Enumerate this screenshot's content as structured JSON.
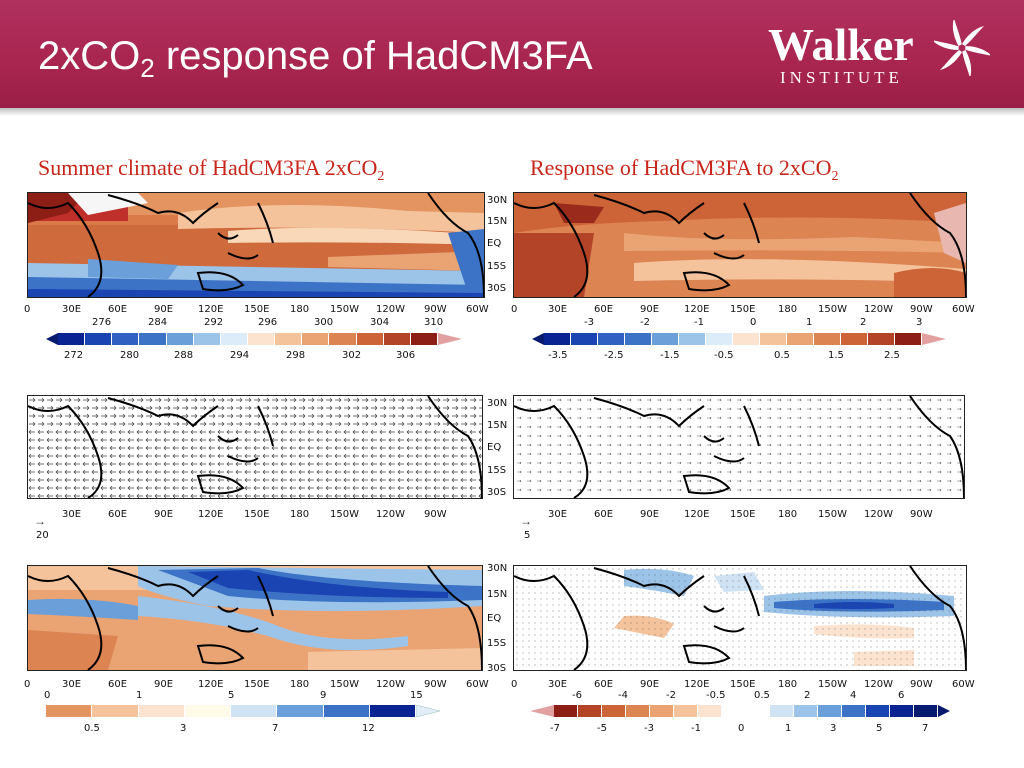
{
  "header": {
    "title_main": "2xCO",
    "title_sub": "2",
    "title_rest": " response of HadCM3FA",
    "logo_word": "Walker",
    "logo_sub": "INSTITUTE"
  },
  "columns": {
    "left_head_main": "Summer climate of HadCM3FA 2xCO",
    "left_head_sub": "2",
    "right_head_main": "Response of HadCM3FA to 2xCO",
    "right_head_sub": "2"
  },
  "lat_labels": [
    "30N",
    "15N",
    "EQ",
    "15S",
    "30S"
  ],
  "lon_labels_full": [
    "0",
    "30E",
    "60E",
    "90E",
    "120E",
    "150E",
    "180",
    "150W",
    "120W",
    "90W",
    "60W"
  ],
  "lon_labels_short": [
    "30E",
    "60E",
    "90E",
    "120E",
    "150E",
    "180",
    "150W",
    "120W",
    "90W"
  ],
  "sst_climate": {
    "top_ticks": [
      "276",
      "284",
      "292",
      "296",
      "300",
      "304",
      "310"
    ],
    "bottom_ticks": [
      "272",
      "280",
      "288",
      "294",
      "298",
      "302",
      "306"
    ]
  },
  "sst_response": {
    "top_ticks": [
      "-3",
      "-2",
      "-1",
      "0",
      "1",
      "2",
      "3"
    ],
    "bottom_ticks": [
      "-3.5",
      "-2.5",
      "-1.5",
      "-0.5",
      "0.5",
      "1.5",
      "2.5"
    ]
  },
  "wind_climate": {
    "ref_value": "20"
  },
  "wind_response": {
    "ref_value": "5"
  },
  "precip_climate": {
    "top_ticks": [
      "0",
      "1",
      "5",
      "9",
      "15"
    ],
    "bottom_ticks": [
      "0.5",
      "3",
      "7",
      "12"
    ]
  },
  "precip_response": {
    "top_ticks": [
      "-6",
      "-4",
      "-2",
      "-0.5",
      "0.5",
      "2",
      "4",
      "6"
    ],
    "bottom_ticks": [
      "-7",
      "-5",
      "-3",
      "-1",
      "0",
      "1",
      "3",
      "5",
      "7"
    ]
  },
  "colors": {
    "header": "#a8254f",
    "column_heading": "#c8261a",
    "warm": [
      "#fbe3cf",
      "#f4c39c",
      "#eaa473",
      "#dc8452",
      "#cd6438",
      "#b44428",
      "#8c1e16"
    ],
    "cool": [
      "#ffffff",
      "#cfe3f4",
      "#9cc3e8",
      "#6a9fd9",
      "#3c73c6",
      "#1a44b1",
      "#0a2393"
    ]
  }
}
